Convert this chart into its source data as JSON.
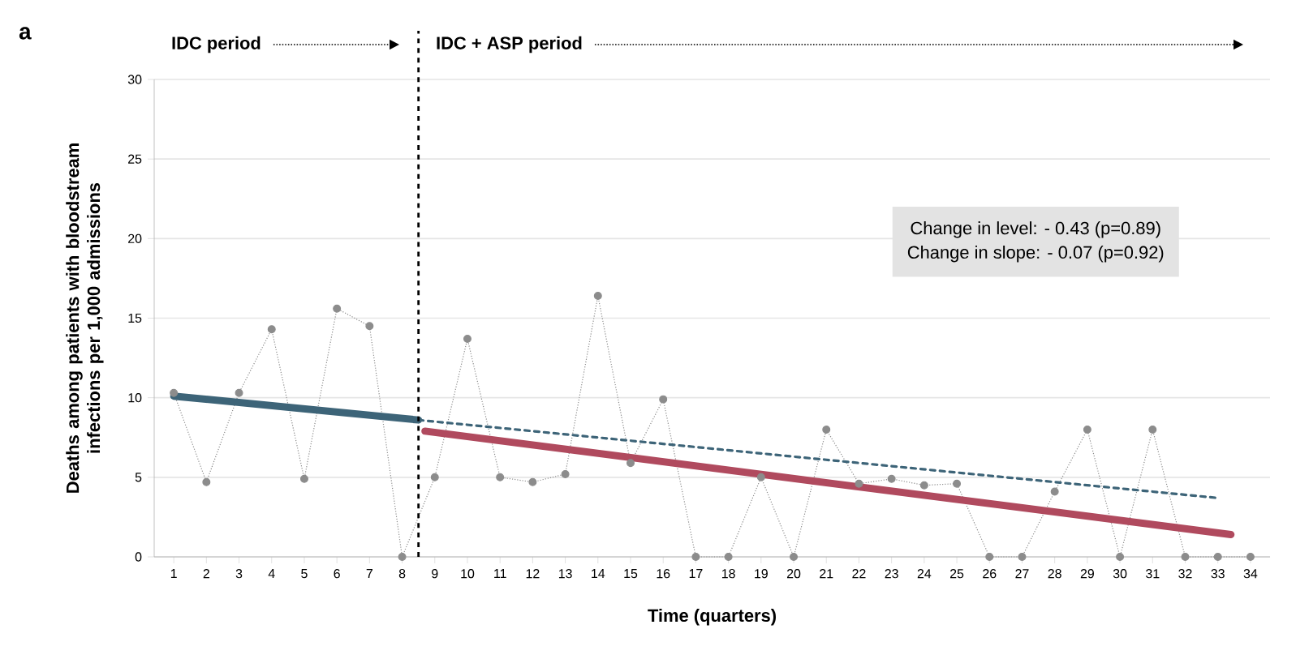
{
  "chart_data": {
    "type": "line",
    "xlabel": "Time (quarters)",
    "ylabel": "Deaths among patients with bloodstream infections per 1,000 admissions",
    "x": [
      1,
      2,
      3,
      4,
      5,
      6,
      7,
      8,
      9,
      10,
      11,
      12,
      13,
      14,
      15,
      16,
      17,
      18,
      19,
      20,
      21,
      22,
      23,
      24,
      25,
      26,
      27,
      28,
      29,
      30,
      31,
      32,
      33,
      34
    ],
    "series": [
      {
        "color": "#8c8c8c",
        "line_style": "dotted",
        "marker": "circle",
        "values": [
          10.3,
          4.7,
          10.3,
          14.3,
          4.9,
          15.6,
          14.5,
          0,
          5.0,
          13.7,
          5.0,
          4.7,
          5.2,
          16.4,
          5.9,
          9.9,
          0,
          0,
          5.0,
          0,
          8.0,
          4.6,
          4.9,
          4.5,
          4.6,
          0,
          0,
          4.1,
          8.0,
          0,
          8.0,
          0,
          0,
          0
        ]
      },
      {
        "color": "#3d6478",
        "line_style": "solid",
        "marker": "none",
        "x": [
          1,
          8.5
        ],
        "values": [
          10.1,
          8.6
        ]
      },
      {
        "color": "#3d6478",
        "line_style": "dashed",
        "marker": "none",
        "x": [
          8.5,
          33
        ],
        "values": [
          8.6,
          3.7
        ]
      },
      {
        "color": "#b04a5e",
        "line_style": "solid",
        "marker": "none",
        "x": [
          8.7,
          33.4
        ],
        "values": [
          7.9,
          1.4
        ]
      }
    ],
    "xlim": [
      0.4,
      34.6
    ],
    "ylim": [
      0,
      30
    ],
    "xticks": [
      1,
      2,
      3,
      4,
      5,
      6,
      7,
      8,
      9,
      10,
      11,
      12,
      13,
      14,
      15,
      16,
      17,
      18,
      19,
      20,
      21,
      22,
      23,
      24,
      25,
      26,
      27,
      28,
      29,
      30,
      31,
      32,
      33,
      34
    ],
    "yticks": [
      0,
      5,
      10,
      15,
      20,
      25,
      30
    ],
    "grid": "y",
    "ref_lines": [
      {
        "axis": "x",
        "value": 8.5,
        "color": "#000000",
        "line_style": "dashed"
      }
    ],
    "annotations": [
      "a",
      "IDC period",
      "IDC + ASP period",
      "Change in level:  - 0.43 (p=0.89)",
      "Change in slope:  - 0.07 (p=0.92)"
    ]
  }
}
